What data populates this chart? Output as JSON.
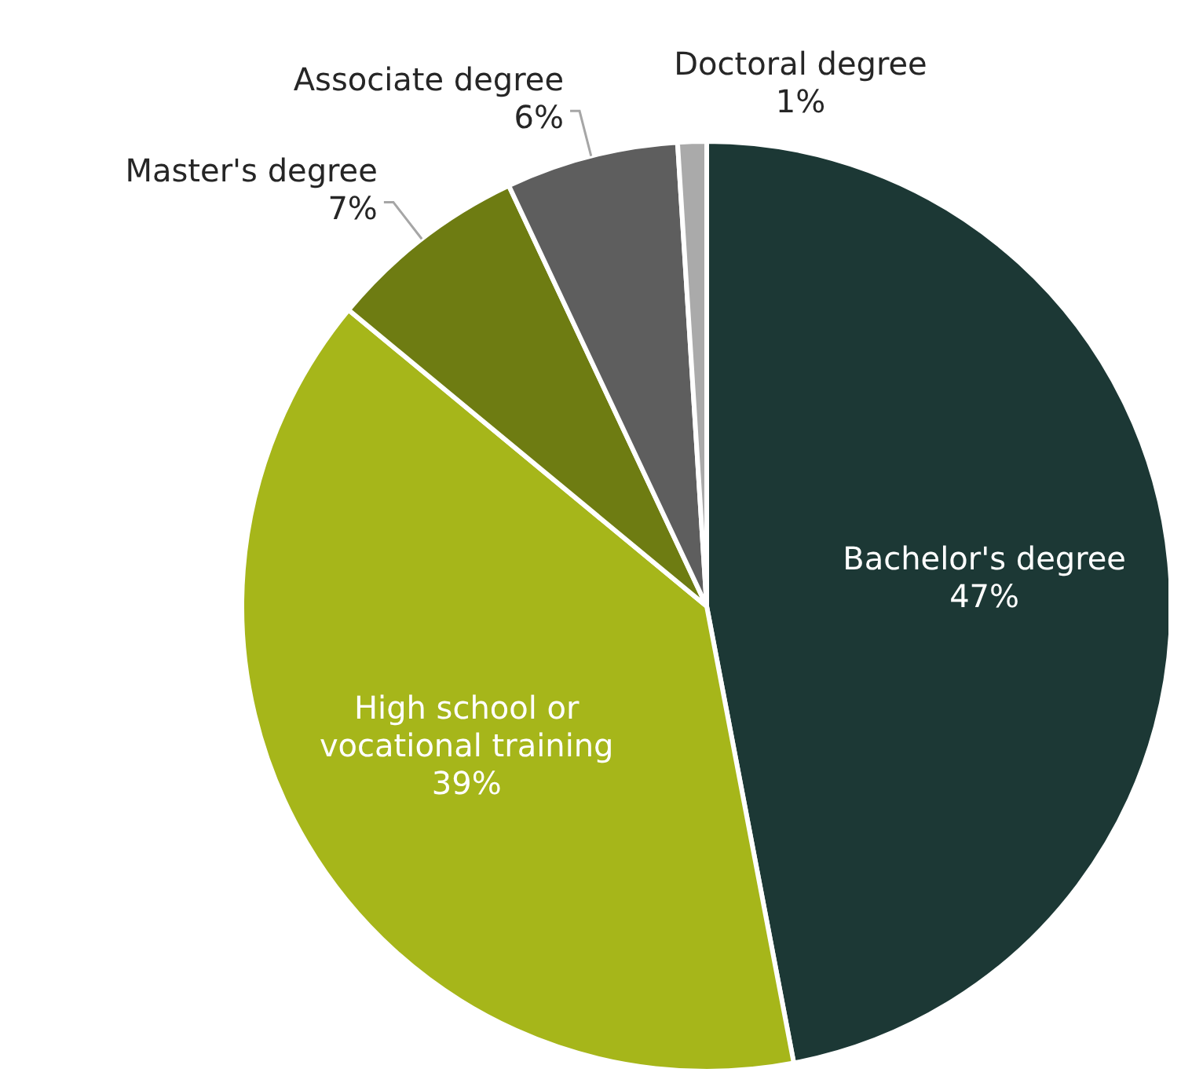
{
  "chart_data": {
    "type": "pie",
    "categories": [
      "Bachelor's degree",
      "High school or vocational training",
      "Master's degree",
      "Associate degree",
      "Doctoral degree"
    ],
    "values": [
      47,
      39,
      7,
      6,
      1
    ],
    "value_labels": [
      "47%",
      "39%",
      "7%",
      "6%",
      "1%"
    ],
    "colors": [
      "#1c3835",
      "#a6b61a",
      "#6e7c12",
      "#5e5e5e",
      "#aaaaaa"
    ]
  }
}
